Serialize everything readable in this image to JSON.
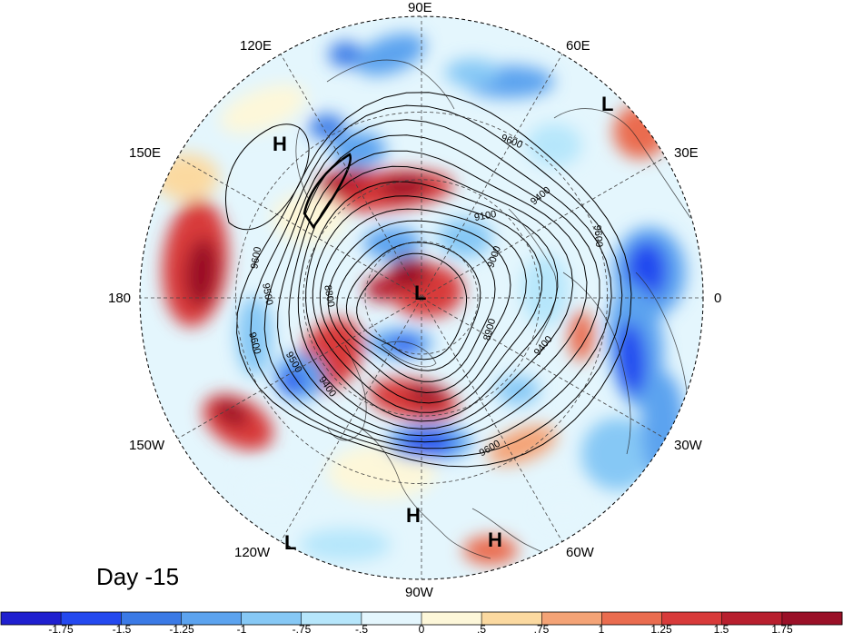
{
  "map": {
    "projection": "north-polar-stereographic",
    "day_label": "Day -15",
    "longitude_labels": [
      "90E",
      "60E",
      "30E",
      "0",
      "30W",
      "60W",
      "90W",
      "120W",
      "150W",
      "180",
      "150E",
      "120E"
    ],
    "pressure_centers": [
      "L",
      "L",
      "H",
      "H",
      "H",
      "L"
    ],
    "contour_labels": [
      "9600",
      "9400",
      "9100",
      "9000",
      "8900",
      "8800",
      "9500",
      "9600",
      "9500",
      "9600",
      "9400",
      "9600",
      "9400",
      "9600"
    ]
  },
  "colorbar": {
    "ticks": [
      "-1.75",
      "-1.5",
      "-1.25",
      "-1",
      "-.75",
      "-.5",
      "0",
      ".5",
      ".75",
      "1",
      "1.25",
      "1.5",
      "1.75"
    ],
    "colors": [
      "#1f1fcf",
      "#2449ef",
      "#3b7ae6",
      "#5ca3ef",
      "#86c8f5",
      "#b6e6fb",
      "#e4f6fd",
      "#fdf7d9",
      "#fbd9a0",
      "#f4a376",
      "#ea6c4f",
      "#d83a3a",
      "#b81f2e",
      "#9a1027"
    ]
  }
}
